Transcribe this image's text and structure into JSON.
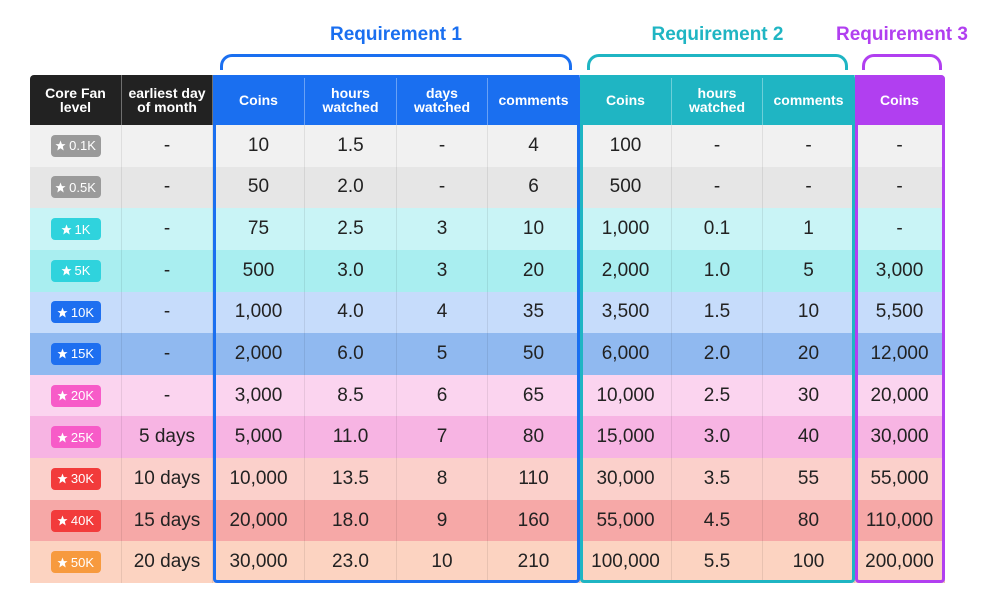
{
  "groups": [
    {
      "title": "Requirement 1"
    },
    {
      "title": "Requirement 2"
    },
    {
      "title": "Requirement 3"
    }
  ],
  "table": {
    "header": [
      "Core Fan level",
      "earliest day of month",
      "Coins",
      "hours watched",
      "days watched",
      "comments",
      "Coins",
      "hours watched",
      "comments",
      "Coins"
    ],
    "rows": [
      [
        "0.1K",
        "-",
        "10",
        "1.5",
        "-",
        "4",
        "100",
        "-",
        "-",
        "-"
      ],
      [
        "0.5K",
        "-",
        "50",
        "2.0",
        "-",
        "6",
        "500",
        "-",
        "-",
        "-"
      ],
      [
        "1K",
        "-",
        "75",
        "2.5",
        "3",
        "10",
        "1,000",
        "0.1",
        "1",
        "-"
      ],
      [
        "5K",
        "-",
        "500",
        "3.0",
        "3",
        "20",
        "2,000",
        "1.0",
        "5",
        "3,000"
      ],
      [
        "10K",
        "-",
        "1,000",
        "4.0",
        "4",
        "35",
        "3,500",
        "1.5",
        "10",
        "5,500"
      ],
      [
        "15K",
        "-",
        "2,000",
        "6.0",
        "5",
        "50",
        "6,000",
        "2.0",
        "20",
        "12,000"
      ],
      [
        "20K",
        "-",
        "3,000",
        "8.5",
        "6",
        "65",
        "10,000",
        "2.5",
        "30",
        "20,000"
      ],
      [
        "25K",
        "5 days",
        "5,000",
        "11.0",
        "7",
        "80",
        "15,000",
        "3.0",
        "40",
        "30,000"
      ],
      [
        "30K",
        "10 days",
        "10,000",
        "13.5",
        "8",
        "110",
        "30,000",
        "3.5",
        "55",
        "55,000"
      ],
      [
        "40K",
        "15 days",
        "20,000",
        "18.0",
        "9",
        "160",
        "55,000",
        "4.5",
        "80",
        "110,000"
      ],
      [
        "50K",
        "20 days",
        "30,000",
        "23.0",
        "10",
        "210",
        "100,000",
        "5.5",
        "100",
        "200,000"
      ]
    ]
  }
}
